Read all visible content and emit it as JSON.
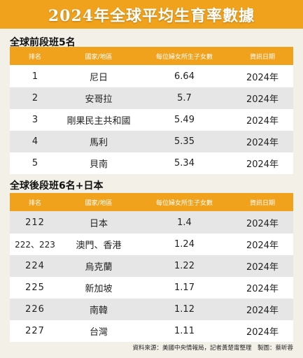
{
  "title": "2024年全球平均生育率數據",
  "section1": {
    "title": "全球前段班5名",
    "headers": [
      "排名",
      "國家/地區",
      "每位婦女所生子女數",
      "資訊日期"
    ],
    "rows": [
      {
        "rank": "1",
        "country": "尼日",
        "rate": "6.64",
        "date": "2024年"
      },
      {
        "rank": "2",
        "country": "安哥拉",
        "rate": "5.7",
        "date": "2024年"
      },
      {
        "rank": "3",
        "country": "剛果民主共和國",
        "rate": "5.49",
        "date": "2024年"
      },
      {
        "rank": "4",
        "country": "馬利",
        "rate": "5.35",
        "date": "2024年"
      },
      {
        "rank": "5",
        "country": "貝南",
        "rate": "5.34",
        "date": "2024年"
      }
    ]
  },
  "section2": {
    "title": "全球後段班6名+日本",
    "headers": [
      "排名",
      "國家/地區",
      "每位婦女所生子女數",
      "資訊日期"
    ],
    "rows": [
      {
        "rank": "212",
        "country": "日本",
        "rate": "1.4",
        "date": "2024年"
      },
      {
        "rank": "222、223",
        "country": "澳門、香港",
        "rate": "1.24",
        "date": "2024年"
      },
      {
        "rank": "224",
        "country": "烏克蘭",
        "rate": "1.22",
        "date": "2024年"
      },
      {
        "rank": "225",
        "country": "新加坡",
        "rate": "1.17",
        "date": "2024年"
      },
      {
        "rank": "226",
        "country": "南韓",
        "rate": "1.12",
        "date": "2024年"
      },
      {
        "rank": "227",
        "country": "台灣",
        "rate": "1.11",
        "date": "2024年"
      }
    ]
  },
  "footer": "資料來源：美國中央情報局，記者黃楚甯整理　製圖：蔡昕蓉",
  "colors": {
    "accent": "#f0a21c",
    "row_alt": "#e6e6e6",
    "background": "#f3f0e8"
  }
}
